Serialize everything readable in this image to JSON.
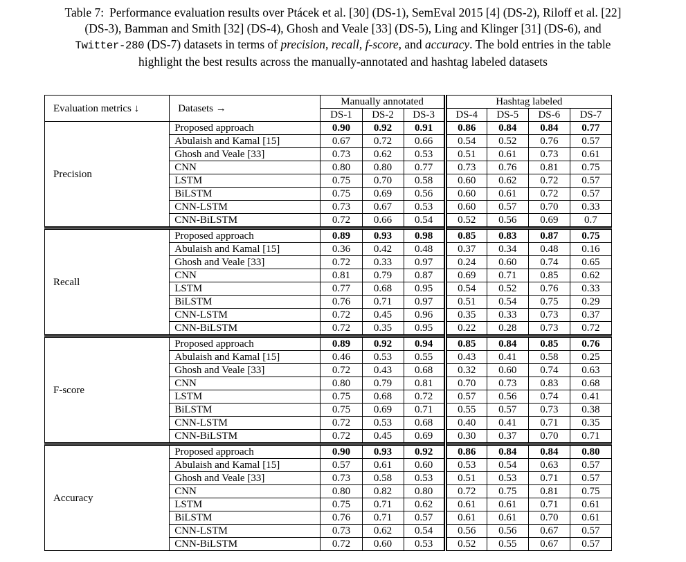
{
  "caption": {
    "lines": [
      {
        "segments": [
          {
            "text": "Table 7:",
            "style": "label"
          },
          {
            "text": "Performance evaluation results over Ptácek et al. [30] (DS-1), SemEval 2015 [4] (DS-2), Riloff et al. [22]",
            "style": "normal"
          }
        ]
      },
      {
        "segments": [
          {
            "text": "(DS-3), Bamman and Smith [32] (DS-4), Ghosh and Veale [33] (DS-5), Ling and Klinger [31] (DS-6), and",
            "style": "normal"
          }
        ]
      },
      {
        "segments": [
          {
            "text": "Twitter-280",
            "style": "mono"
          },
          {
            "text": " (DS-7) datasets in terms of ",
            "style": "normal"
          },
          {
            "text": "precision",
            "style": "italic"
          },
          {
            "text": ", ",
            "style": "normal"
          },
          {
            "text": "recall",
            "style": "italic"
          },
          {
            "text": ", ",
            "style": "normal"
          },
          {
            "text": "f-score",
            "style": "italic"
          },
          {
            "text": ", and ",
            "style": "normal"
          },
          {
            "text": "accuracy",
            "style": "italic"
          },
          {
            "text": ". The bold entries in the table",
            "style": "normal"
          }
        ]
      },
      {
        "segments": [
          {
            "text": "highlight the best results across the manually-annotated and hashtag labeled datasets",
            "style": "normal"
          }
        ]
      }
    ]
  },
  "table": {
    "header": {
      "metrics_label": "Evaluation metrics ↓",
      "datasets_label": "Datasets →",
      "groups": [
        {
          "label": "Manually annotated",
          "span": 3
        },
        {
          "label": "Hashtag labeled",
          "span": 4
        }
      ],
      "dataset_columns": [
        "DS-1",
        "DS-2",
        "DS-3",
        "DS-4",
        "DS-5",
        "DS-6",
        "DS-7"
      ]
    },
    "blocks": [
      {
        "metric": "Precision",
        "rows": [
          {
            "model": "Proposed approach",
            "bold": true,
            "values": [
              "0.90",
              "0.92",
              "0.91",
              "0.86",
              "0.84",
              "0.84",
              "0.77"
            ]
          },
          {
            "model": "Abulaish and Kamal [15]",
            "bold": false,
            "values": [
              "0.67",
              "0.72",
              "0.66",
              "0.54",
              "0.52",
              "0.76",
              "0.57"
            ]
          },
          {
            "model": "Ghosh and Veale [33]",
            "bold": false,
            "values": [
              "0.73",
              "0.62",
              "0.53",
              "0.51",
              "0.61",
              "0.73",
              "0.61"
            ]
          },
          {
            "model": "CNN",
            "bold": false,
            "values": [
              "0.80",
              "0.80",
              "0.77",
              "0.73",
              "0.76",
              "0.81",
              "0.75"
            ]
          },
          {
            "model": "LSTM",
            "bold": false,
            "values": [
              "0.75",
              "0.70",
              "0.58",
              "0.60",
              "0.62",
              "0.72",
              "0.57"
            ]
          },
          {
            "model": "BiLSTM",
            "bold": false,
            "values": [
              "0.75",
              "0.69",
              "0.56",
              "0.60",
              "0.61",
              "0.72",
              "0.57"
            ]
          },
          {
            "model": "CNN-LSTM",
            "bold": false,
            "values": [
              "0.73",
              "0.67",
              "0.53",
              "0.60",
              "0.57",
              "0.70",
              "0.33"
            ]
          },
          {
            "model": "CNN-BiLSTM",
            "bold": false,
            "values": [
              "0.72",
              "0.66",
              "0.54",
              "0.52",
              "0.56",
              "0.69",
              "0.7"
            ]
          }
        ]
      },
      {
        "metric": "Recall",
        "rows": [
          {
            "model": "Proposed approach",
            "bold": true,
            "values": [
              "0.89",
              "0.93",
              "0.98",
              "0.85",
              "0.83",
              "0.87",
              "0.75"
            ]
          },
          {
            "model": "Abulaish and Kamal [15]",
            "bold": false,
            "values": [
              "0.36",
              "0.42",
              "0.48",
              "0.37",
              "0.34",
              "0.48",
              "0.16"
            ]
          },
          {
            "model": "Ghosh and Veale [33]",
            "bold": false,
            "values": [
              "0.72",
              "0.33",
              "0.97",
              "0.24",
              "0.60",
              "0.74",
              "0.65"
            ]
          },
          {
            "model": "CNN",
            "bold": false,
            "values": [
              "0.81",
              "0.79",
              "0.87",
              "0.69",
              "0.71",
              "0.85",
              "0.62"
            ]
          },
          {
            "model": "LSTM",
            "bold": false,
            "values": [
              "0.77",
              "0.68",
              "0.95",
              "0.54",
              "0.52",
              "0.76",
              "0.33"
            ]
          },
          {
            "model": "BiLSTM",
            "bold": false,
            "values": [
              "0.76",
              "0.71",
              "0.97",
              "0.51",
              "0.54",
              "0.75",
              "0.29"
            ]
          },
          {
            "model": "CNN-LSTM",
            "bold": false,
            "values": [
              "0.72",
              "0.45",
              "0.96",
              "0.35",
              "0.33",
              "0.73",
              "0.37"
            ]
          },
          {
            "model": "CNN-BiLSTM",
            "bold": false,
            "values": [
              "0.72",
              "0.35",
              "0.95",
              "0.22",
              "0.28",
              "0.73",
              "0.72"
            ]
          }
        ]
      },
      {
        "metric": "F-score",
        "rows": [
          {
            "model": "Proposed approach",
            "bold": true,
            "values": [
              "0.89",
              "0.92",
              "0.94",
              "0.85",
              "0.84",
              "0.85",
              "0.76"
            ]
          },
          {
            "model": "Abulaish and Kamal [15]",
            "bold": false,
            "values": [
              "0.46",
              "0.53",
              "0.55",
              "0.43",
              "0.41",
              "0.58",
              "0.25"
            ]
          },
          {
            "model": "Ghosh and Veale [33]",
            "bold": false,
            "values": [
              "0.72",
              "0.43",
              "0.68",
              "0.32",
              "0.60",
              "0.74",
              "0.63"
            ]
          },
          {
            "model": "CNN",
            "bold": false,
            "values": [
              "0.80",
              "0.79",
              "0.81",
              "0.70",
              "0.73",
              "0.83",
              "0.68"
            ]
          },
          {
            "model": "LSTM",
            "bold": false,
            "values": [
              "0.75",
              "0.68",
              "0.72",
              "0.57",
              "0.56",
              "0.74",
              "0.41"
            ]
          },
          {
            "model": "BiLSTM",
            "bold": false,
            "values": [
              "0.75",
              "0.69",
              "0.71",
              "0.55",
              "0.57",
              "0.73",
              "0.38"
            ]
          },
          {
            "model": "CNN-LSTM",
            "bold": false,
            "values": [
              "0.72",
              "0.53",
              "0.68",
              "0.40",
              "0.41",
              "0.71",
              "0.35"
            ]
          },
          {
            "model": "CNN-BiLSTM",
            "bold": false,
            "values": [
              "0.72",
              "0.45",
              "0.69",
              "0.30",
              "0.37",
              "0.70",
              "0.71"
            ]
          }
        ]
      },
      {
        "metric": "Accuracy",
        "rows": [
          {
            "model": "Proposed approach",
            "bold": true,
            "values": [
              "0.90",
              "0.93",
              "0.92",
              "0.86",
              "0.84",
              "0.84",
              "0.80"
            ]
          },
          {
            "model": "Abulaish and Kamal [15]",
            "bold": false,
            "values": [
              "0.57",
              "0.61",
              "0.60",
              "0.53",
              "0.54",
              "0.63",
              "0.57"
            ]
          },
          {
            "model": "Ghosh and Veale [33]",
            "bold": false,
            "values": [
              "0.73",
              "0.58",
              "0.53",
              "0.51",
              "0.53",
              "0.71",
              "0.57"
            ]
          },
          {
            "model": "CNN",
            "bold": false,
            "values": [
              "0.80",
              "0.82",
              "0.80",
              "0.72",
              "0.75",
              "0.81",
              "0.75"
            ]
          },
          {
            "model": "LSTM",
            "bold": false,
            "values": [
              "0.75",
              "0.71",
              "0.62",
              "0.61",
              "0.61",
              "0.71",
              "0.61"
            ]
          },
          {
            "model": "BiLSTM",
            "bold": false,
            "values": [
              "0.76",
              "0.71",
              "0.57",
              "0.61",
              "0.61",
              "0.70",
              "0.61"
            ]
          },
          {
            "model": "CNN-LSTM",
            "bold": false,
            "values": [
              "0.73",
              "0.62",
              "0.54",
              "0.56",
              "0.56",
              "0.67",
              "0.57"
            ]
          },
          {
            "model": "CNN-BiLSTM",
            "bold": false,
            "values": [
              "0.72",
              "0.60",
              "0.53",
              "0.52",
              "0.55",
              "0.67",
              "0.57"
            ]
          }
        ]
      }
    ]
  }
}
